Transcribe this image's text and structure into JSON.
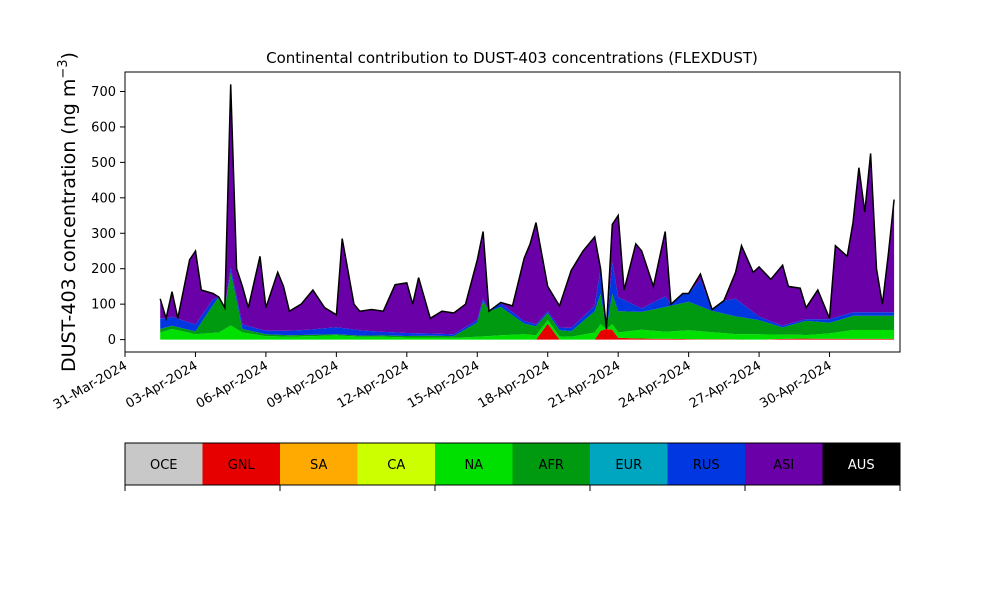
{
  "chart_data": {
    "type": "area",
    "stacked": true,
    "title": "Continental contribution to DUST-403 concentrations (FLEXDUST)",
    "ylabel_main": "DUST-403 concentration (ng m",
    "ylabel_sup": "−3",
    "ylabel_close": ")",
    "xlabel": "",
    "ylim": [
      -35,
      755
    ],
    "y_ticks": [
      0,
      100,
      200,
      300,
      400,
      500,
      600,
      700
    ],
    "x_range_days": [
      "2024-03-31T00:00",
      "2024-05-03T00:00"
    ],
    "x_tick_labels": [
      "31-Mar-2024",
      "03-Apr-2024",
      "06-Apr-2024",
      "09-Apr-2024",
      "12-Apr-2024",
      "15-Apr-2024",
      "18-Apr-2024",
      "21-Apr-2024",
      "24-Apr-2024",
      "27-Apr-2024",
      "30-Apr-2024"
    ],
    "x_tick_dates": [
      "2024-03-31",
      "2024-04-03",
      "2024-04-06",
      "2024-04-09",
      "2024-04-12",
      "2024-04-15",
      "2024-04-18",
      "2024-04-21",
      "2024-04-24",
      "2024-04-27",
      "2024-04-30"
    ],
    "grid": false,
    "legend": [
      {
        "label": "OCE",
        "color": "#c8c8c8"
      },
      {
        "label": "GNL",
        "color": "#e60000"
      },
      {
        "label": "SA",
        "color": "#ffaa00"
      },
      {
        "label": "CA",
        "color": "#ccff00"
      },
      {
        "label": "NA",
        "color": "#00e000"
      },
      {
        "label": "AFR",
        "color": "#009a10"
      },
      {
        "label": "EUR",
        "color": "#00a5c0"
      },
      {
        "label": "RUS",
        "color": "#0037e0"
      },
      {
        "label": "ASI",
        "color": "#6a00a8"
      },
      {
        "label": "AUS",
        "color": "#000000"
      }
    ],
    "series": [
      {
        "region": "GNL",
        "color": "#e60000",
        "points": [
          [
            "2024-04-17T12:00",
            0
          ],
          [
            "2024-04-18T00:00",
            45
          ],
          [
            "2024-04-18T12:00",
            0
          ],
          [
            "2024-04-20T00:00",
            0
          ],
          [
            "2024-04-20T12:00",
            50
          ],
          [
            "2024-04-21T00:00",
            5
          ],
          [
            "2024-04-22T00:00",
            3
          ],
          [
            "2024-04-23T00:00",
            2
          ],
          [
            "2024-04-27T00:00",
            0
          ],
          [
            "2024-04-28T12:00",
            3
          ],
          [
            "2024-05-01T00:00",
            2
          ]
        ]
      },
      {
        "region": "NA",
        "color": "#00e000",
        "points": [
          [
            "2024-04-01T12:00",
            20
          ],
          [
            "2024-04-02T00:00",
            30
          ],
          [
            "2024-04-03T00:00",
            15
          ],
          [
            "2024-04-04T00:00",
            20
          ],
          [
            "2024-04-04T12:00",
            40
          ],
          [
            "2024-04-05T00:00",
            20
          ],
          [
            "2024-04-06T00:00",
            10
          ],
          [
            "2024-04-07T00:00",
            8
          ],
          [
            "2024-04-08T00:00",
            10
          ],
          [
            "2024-04-09T00:00",
            12
          ],
          [
            "2024-04-10T00:00",
            8
          ],
          [
            "2024-04-11T00:00",
            8
          ],
          [
            "2024-04-12T00:00",
            6
          ],
          [
            "2024-04-13T00:00",
            6
          ],
          [
            "2024-04-14T00:00",
            5
          ],
          [
            "2024-04-15T00:00",
            8
          ],
          [
            "2024-04-16T00:00",
            12
          ],
          [
            "2024-04-17T00:00",
            15
          ],
          [
            "2024-04-18T00:00",
            10
          ],
          [
            "2024-04-19T00:00",
            8
          ],
          [
            "2024-04-20T00:00",
            20
          ],
          [
            "2024-04-21T00:00",
            15
          ],
          [
            "2024-04-22T00:00",
            25
          ],
          [
            "2024-04-23T00:00",
            20
          ],
          [
            "2024-04-24T00:00",
            25
          ],
          [
            "2024-04-25T00:00",
            20
          ],
          [
            "2024-04-26T00:00",
            15
          ],
          [
            "2024-04-27T00:00",
            15
          ],
          [
            "2024-04-28T00:00",
            12
          ],
          [
            "2024-04-29T00:00",
            10
          ],
          [
            "2024-04-30T00:00",
            15
          ],
          [
            "2024-05-01T00:00",
            25
          ]
        ]
      },
      {
        "region": "AFR",
        "color": "#009a10",
        "points": [
          [
            "2024-04-01T12:00",
            10
          ],
          [
            "2024-04-03T00:00",
            8
          ],
          [
            "2024-04-04T12:00",
            150
          ],
          [
            "2024-04-05T00:00",
            10
          ],
          [
            "2024-04-06T00:00",
            5
          ],
          [
            "2024-04-09T00:00",
            3
          ],
          [
            "2024-04-14T00:00",
            5
          ],
          [
            "2024-04-15T00:00",
            40
          ],
          [
            "2024-04-15T12:00",
            160
          ],
          [
            "2024-04-16T00:00",
            80
          ],
          [
            "2024-04-17T00:00",
            30
          ],
          [
            "2024-04-18T00:00",
            20
          ],
          [
            "2024-04-19T00:00",
            15
          ],
          [
            "2024-04-20T00:00",
            60
          ],
          [
            "2024-04-20T12:00",
            110
          ],
          [
            "2024-04-21T00:00",
            60
          ],
          [
            "2024-04-22T00:00",
            50
          ],
          [
            "2024-04-23T00:00",
            70
          ],
          [
            "2024-04-24T00:00",
            80
          ],
          [
            "2024-04-25T00:00",
            60
          ],
          [
            "2024-04-26T00:00",
            50
          ],
          [
            "2024-04-27T00:00",
            40
          ],
          [
            "2024-04-28T00:00",
            20
          ],
          [
            "2024-04-29T00:00",
            40
          ],
          [
            "2024-04-30T00:00",
            30
          ],
          [
            "2024-05-01T00:00",
            40
          ]
        ]
      },
      {
        "region": "RUS",
        "color": "#0037e0",
        "points": [
          [
            "2024-04-01T12:00",
            30
          ],
          [
            "2024-04-02T00:00",
            25
          ],
          [
            "2024-04-03T00:00",
            20
          ],
          [
            "2024-04-04T00:00",
            15
          ],
          [
            "2024-04-06T00:00",
            10
          ],
          [
            "2024-04-08T00:00",
            15
          ],
          [
            "2024-04-09T00:00",
            20
          ],
          [
            "2024-04-11T00:00",
            10
          ],
          [
            "2024-04-14T00:00",
            5
          ],
          [
            "2024-04-16T00:00",
            10
          ],
          [
            "2024-04-18T00:00",
            5
          ],
          [
            "2024-04-20T00:00",
            15
          ],
          [
            "2024-04-20T12:00",
            140
          ],
          [
            "2024-04-21T00:00",
            40
          ],
          [
            "2024-04-22T00:00",
            10
          ],
          [
            "2024-04-23T00:00",
            30
          ],
          [
            "2024-04-24T00:00",
            60
          ],
          [
            "2024-04-25T00:00",
            90
          ],
          [
            "2024-04-26T00:00",
            50
          ],
          [
            "2024-04-27T00:00",
            10
          ],
          [
            "2024-04-28T00:00",
            5
          ],
          [
            "2024-04-29T00:00",
            5
          ],
          [
            "2024-04-30T00:00",
            10
          ],
          [
            "2024-05-01T00:00",
            10
          ]
        ]
      },
      {
        "region": "TOTAL",
        "color": "#000000",
        "points": [
          [
            "2024-04-01T12:00",
            115
          ],
          [
            "2024-04-01T18:00",
            60
          ],
          [
            "2024-04-02T00:00",
            135
          ],
          [
            "2024-04-02T06:00",
            60
          ],
          [
            "2024-04-02T18:00",
            225
          ],
          [
            "2024-04-03T00:00",
            250
          ],
          [
            "2024-04-03T06:00",
            140
          ],
          [
            "2024-04-03T18:00",
            130
          ],
          [
            "2024-04-04T00:00",
            120
          ],
          [
            "2024-04-04T06:00",
            90
          ],
          [
            "2024-04-04T12:00",
            720
          ],
          [
            "2024-04-04T18:00",
            200
          ],
          [
            "2024-04-05T00:00",
            150
          ],
          [
            "2024-04-05T06:00",
            90
          ],
          [
            "2024-04-05T18:00",
            235
          ],
          [
            "2024-04-06T00:00",
            90
          ],
          [
            "2024-04-06T12:00",
            190
          ],
          [
            "2024-04-06T18:00",
            150
          ],
          [
            "2024-04-07T00:00",
            80
          ],
          [
            "2024-04-07T12:00",
            100
          ],
          [
            "2024-04-08T00:00",
            140
          ],
          [
            "2024-04-08T12:00",
            90
          ],
          [
            "2024-04-09T00:00",
            70
          ],
          [
            "2024-04-09T06:00",
            285
          ],
          [
            "2024-04-09T18:00",
            100
          ],
          [
            "2024-04-10T00:00",
            80
          ],
          [
            "2024-04-10T12:00",
            85
          ],
          [
            "2024-04-11T00:00",
            80
          ],
          [
            "2024-04-11T12:00",
            155
          ],
          [
            "2024-04-12T00:00",
            160
          ],
          [
            "2024-04-12T06:00",
            100
          ],
          [
            "2024-04-12T12:00",
            175
          ],
          [
            "2024-04-13T00:00",
            60
          ],
          [
            "2024-04-13T12:00",
            80
          ],
          [
            "2024-04-14T00:00",
            75
          ],
          [
            "2024-04-14T12:00",
            100
          ],
          [
            "2024-04-15T00:00",
            225
          ],
          [
            "2024-04-15T06:00",
            305
          ],
          [
            "2024-04-15T12:00",
            80
          ],
          [
            "2024-04-16T00:00",
            105
          ],
          [
            "2024-04-16T12:00",
            95
          ],
          [
            "2024-04-17T00:00",
            230
          ],
          [
            "2024-04-17T06:00",
            270
          ],
          [
            "2024-04-17T12:00",
            330
          ],
          [
            "2024-04-18T00:00",
            150
          ],
          [
            "2024-04-18T12:00",
            95
          ],
          [
            "2024-04-19T00:00",
            195
          ],
          [
            "2024-04-19T12:00",
            250
          ],
          [
            "2024-04-20T00:00",
            290
          ],
          [
            "2024-04-20T06:00",
            200
          ],
          [
            "2024-04-20T12:00",
            30
          ],
          [
            "2024-04-20T18:00",
            325
          ],
          [
            "2024-04-21T00:00",
            350
          ],
          [
            "2024-04-21T06:00",
            140
          ],
          [
            "2024-04-21T18:00",
            270
          ],
          [
            "2024-04-22T00:00",
            250
          ],
          [
            "2024-04-22T12:00",
            150
          ],
          [
            "2024-04-23T00:00",
            305
          ],
          [
            "2024-04-23T06:00",
            100
          ],
          [
            "2024-04-23T18:00",
            130
          ],
          [
            "2024-04-24T00:00",
            130
          ],
          [
            "2024-04-24T12:00",
            185
          ],
          [
            "2024-04-25T00:00",
            85
          ],
          [
            "2024-04-25T12:00",
            110
          ],
          [
            "2024-04-26T00:00",
            190
          ],
          [
            "2024-04-26T06:00",
            265
          ],
          [
            "2024-04-26T18:00",
            190
          ],
          [
            "2024-04-27T00:00",
            205
          ],
          [
            "2024-04-27T12:00",
            170
          ],
          [
            "2024-04-28T00:00",
            210
          ],
          [
            "2024-04-28T06:00",
            150
          ],
          [
            "2024-04-28T18:00",
            145
          ],
          [
            "2024-04-29T00:00",
            90
          ],
          [
            "2024-04-29T12:00",
            140
          ],
          [
            "2024-04-30T00:00",
            60
          ],
          [
            "2024-04-30T06:00",
            265
          ],
          [
            "2024-04-30T18:00",
            235
          ],
          [
            "2024-05-01T00:00",
            330
          ],
          [
            "2024-05-01T06:00",
            485
          ],
          [
            "2024-05-01T12:00",
            360
          ],
          [
            "2024-05-01T18:00",
            525
          ],
          [
            "2024-05-02T00:00",
            200
          ],
          [
            "2024-05-02T06:00",
            100
          ],
          [
            "2024-05-02T12:00",
            240
          ],
          [
            "2024-05-02T18:00",
            395
          ]
        ]
      }
    ]
  }
}
